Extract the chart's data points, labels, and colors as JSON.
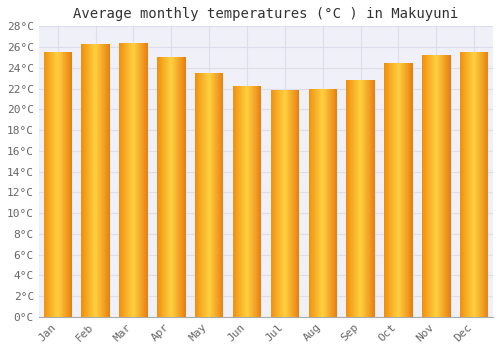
{
  "title": "Average monthly temperatures (°C ) in Makuyuni",
  "months": [
    "Jan",
    "Feb",
    "Mar",
    "Apr",
    "May",
    "Jun",
    "Jul",
    "Aug",
    "Sep",
    "Oct",
    "Nov",
    "Dec"
  ],
  "values": [
    25.5,
    26.3,
    26.4,
    25.0,
    23.5,
    22.2,
    21.9,
    22.0,
    22.8,
    24.5,
    25.2,
    25.5
  ],
  "bar_color_center": "#FFD04A",
  "bar_color_edge": "#F0900A",
  "background_color": "#ffffff",
  "plot_bg_color": "#f0f0f8",
  "grid_color": "#ddddee",
  "ylim": [
    0,
    28
  ],
  "ytick_step": 2,
  "title_fontsize": 10,
  "tick_fontsize": 8,
  "title_color": "#333333",
  "tick_color": "#666666",
  "bar_width": 0.75
}
